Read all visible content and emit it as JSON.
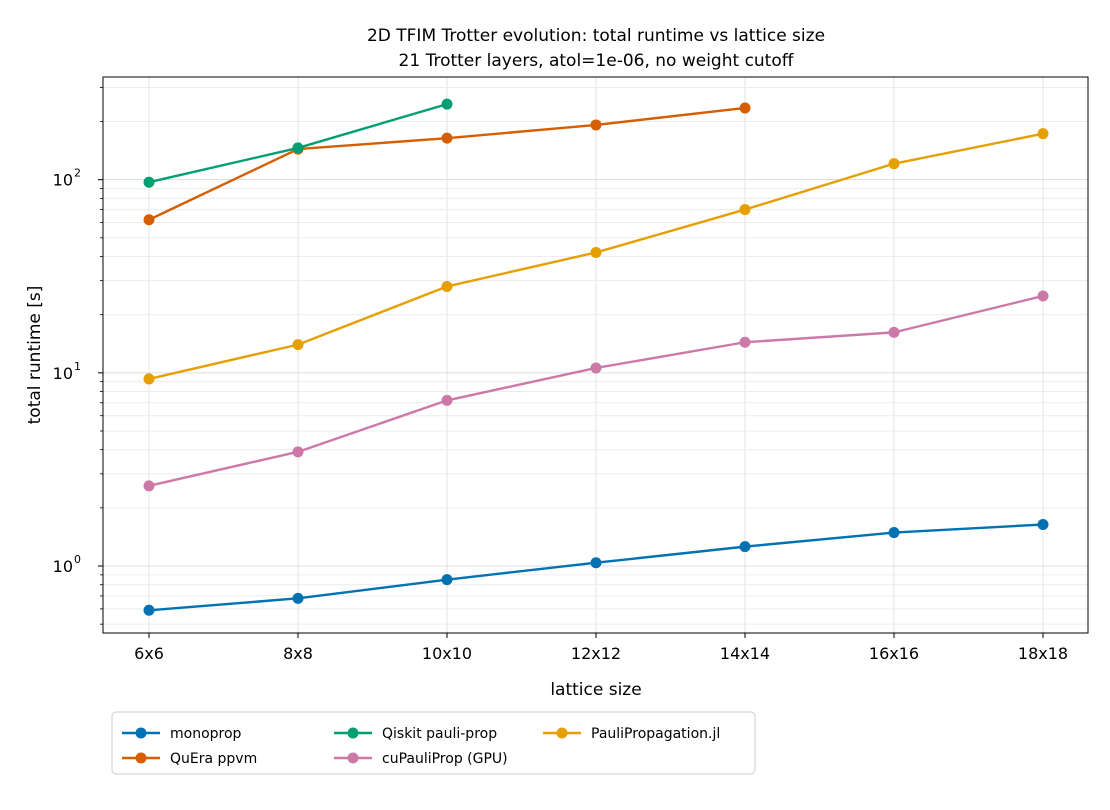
{
  "chart_data": {
    "type": "line",
    "title": "2D TFIM Trotter evolution: total runtime vs lattice size",
    "subtitle": "21 Trotter layers, atol=1e-06, no weight cutoff",
    "xlabel": "lattice size",
    "ylabel": "total runtime [s]",
    "yscale": "log",
    "categories": [
      "6x6",
      "8x8",
      "10x10",
      "12x12",
      "14x14",
      "16x16",
      "18x18"
    ],
    "ylim": [
      0.45,
      340
    ],
    "ytick_labels": [
      "10",
      "10",
      "10"
    ],
    "ytick_exponents": [
      "0",
      "1",
      "2"
    ],
    "ytick_values": [
      1,
      10,
      100
    ],
    "grid": true,
    "legend_position": "bottom-left, below axes",
    "series": [
      {
        "name": "monoprop",
        "color": "#0072b2",
        "values": [
          0.59,
          0.68,
          0.85,
          1.04,
          1.26,
          1.49,
          1.64
        ]
      },
      {
        "name": "QuEra ppvm",
        "color": "#d55e00",
        "values": [
          62,
          144,
          164,
          192,
          235,
          null,
          null
        ]
      },
      {
        "name": "Qiskit pauli-prop",
        "color": "#009e73",
        "values": [
          97,
          146,
          246,
          null,
          null,
          null,
          null
        ]
      },
      {
        "name": "cuPauliProp (GPU)",
        "color": "#cc79a7",
        "values": [
          2.6,
          3.9,
          7.2,
          10.6,
          14.4,
          16.2,
          25
        ]
      },
      {
        "name": "PauliPropagation.jl",
        "color": "#e69f00",
        "values": [
          9.3,
          14,
          28,
          42,
          70,
          121,
          173
        ]
      }
    ]
  }
}
